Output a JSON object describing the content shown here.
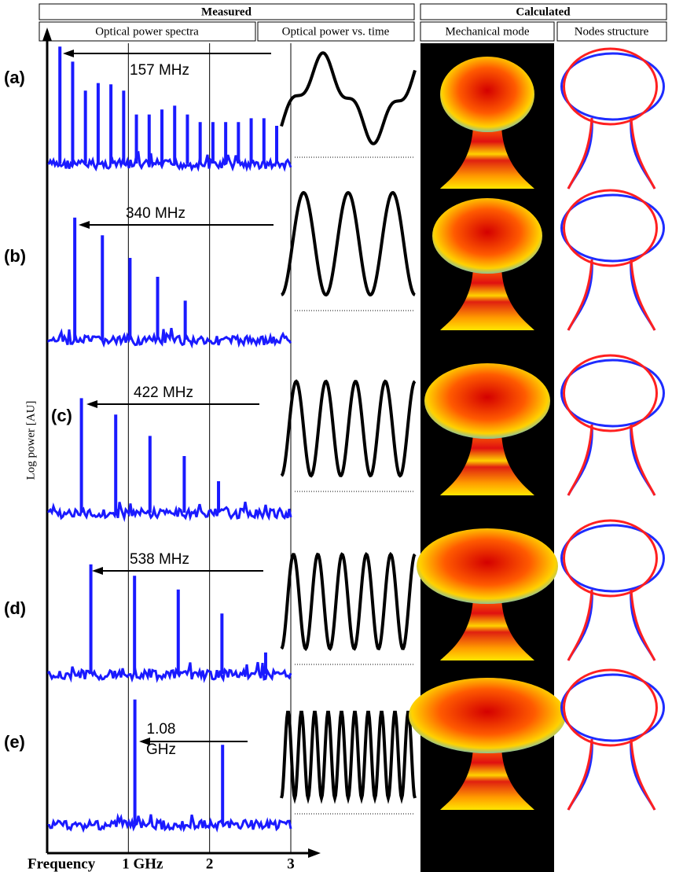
{
  "header": {
    "measured": "Measured",
    "calculated": "Calculated",
    "columns": [
      "Optical power spectra",
      "Optical power vs. time",
      "Mechanical mode",
      "Nodes structure"
    ]
  },
  "chart_data": [
    {
      "type": "stem",
      "panel": "(a)",
      "annotation": "157 MHz",
      "color": "#1a1aff",
      "xlim": [
        0,
        3
      ],
      "ylim": [
        0,
        1
      ],
      "x": [
        0.157,
        0.314,
        0.471,
        0.628,
        0.785,
        0.942,
        1.099,
        1.256,
        1.413,
        1.57,
        1.727,
        1.884,
        2.041,
        2.198,
        2.355,
        2.512,
        2.669,
        2.826
      ],
      "values": [
        0.93,
        0.81,
        0.58,
        0.64,
        0.63,
        0.58,
        0.39,
        0.39,
        0.43,
        0.46,
        0.39,
        0.33,
        0.33,
        0.33,
        0.33,
        0.36,
        0.36,
        0.3
      ]
    },
    {
      "type": "stem",
      "panel": "(b)",
      "annotation": "340 MHz",
      "color": "#1a1aff",
      "xlim": [
        0,
        3
      ],
      "ylim": [
        0,
        1
      ],
      "x": [
        0.34,
        0.68,
        1.02,
        1.36,
        1.7
      ],
      "values": [
        0.97,
        0.83,
        0.65,
        0.5,
        0.31
      ]
    },
    {
      "type": "stem",
      "panel": "(c)",
      "annotation": "422 MHz",
      "color": "#1a1aff",
      "xlim": [
        0,
        3
      ],
      "ylim": [
        0,
        1
      ],
      "x": [
        0.422,
        0.844,
        1.266,
        1.688,
        2.11
      ],
      "values": [
        0.91,
        0.78,
        0.61,
        0.45,
        0.25
      ]
    },
    {
      "type": "stem",
      "panel": "(d)",
      "annotation": "538 MHz",
      "color": "#1a1aff",
      "xlim": [
        0,
        3
      ],
      "ylim": [
        0,
        1
      ],
      "x": [
        0.538,
        1.076,
        1.614,
        2.152,
        2.69
      ],
      "values": [
        0.87,
        0.78,
        0.67,
        0.48,
        0.17
      ]
    },
    {
      "type": "stem",
      "panel": "(e)",
      "annotation": "1.08 GHz",
      "color": "#1a1aff",
      "xlim": [
        0,
        3
      ],
      "ylim": [
        0,
        1
      ],
      "x": [
        1.08,
        2.16
      ],
      "values": [
        0.99,
        0.63
      ],
      "xlabel": "Frequency",
      "ylabel": "Log power [AU]",
      "xticks": [
        {
          "value": 1,
          "label": "1 GHz"
        },
        2,
        3
      ]
    }
  ]
}
